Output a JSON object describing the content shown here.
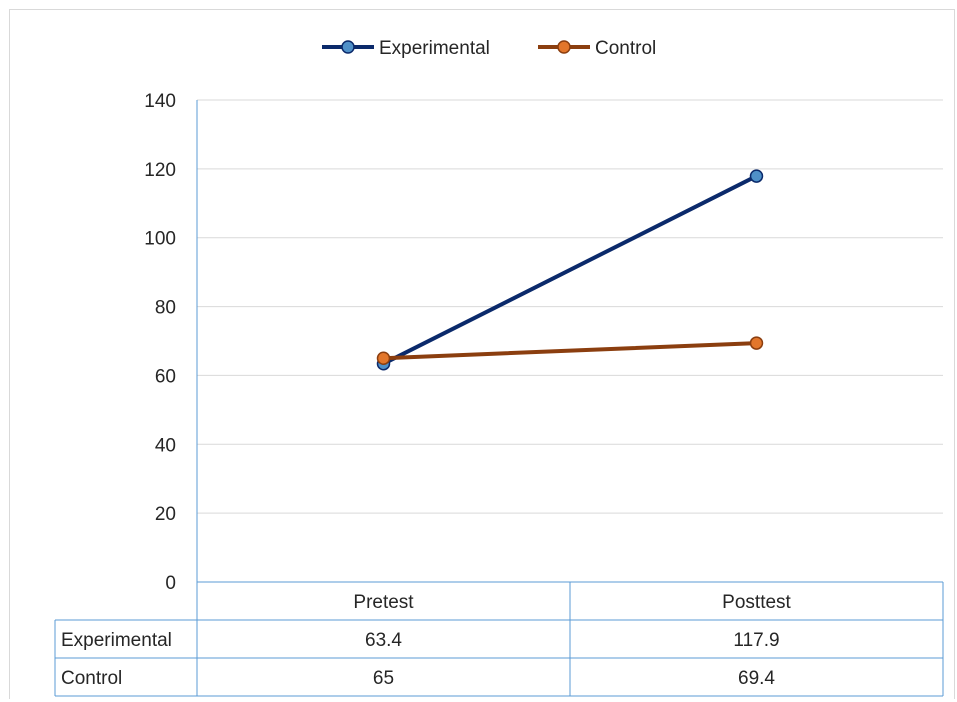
{
  "chart_data": {
    "type": "line",
    "categories": [
      "Pretest",
      "Posttest"
    ],
    "series": [
      {
        "name": "Experimental",
        "values": [
          63.4,
          117.9
        ],
        "color": "#0b2a6b",
        "marker_color": "#4f90c8"
      },
      {
        "name": "Control",
        "values": [
          65,
          69.4
        ],
        "color": "#8b3e0f",
        "marker_color": "#e2762b"
      }
    ],
    "ylim": [
      0,
      140
    ],
    "yticks": [
      "0",
      "20",
      "40",
      "60",
      "80",
      "100",
      "120",
      "140"
    ],
    "grid": true,
    "legend_position": "top",
    "data_table": {
      "header": [
        "Pretest",
        "Posttest"
      ],
      "rows": [
        {
          "label": "Experimental",
          "cells": [
            "63.4",
            "117.9"
          ]
        },
        {
          "label": "Control",
          "cells": [
            "65",
            "69.4"
          ]
        }
      ]
    }
  }
}
